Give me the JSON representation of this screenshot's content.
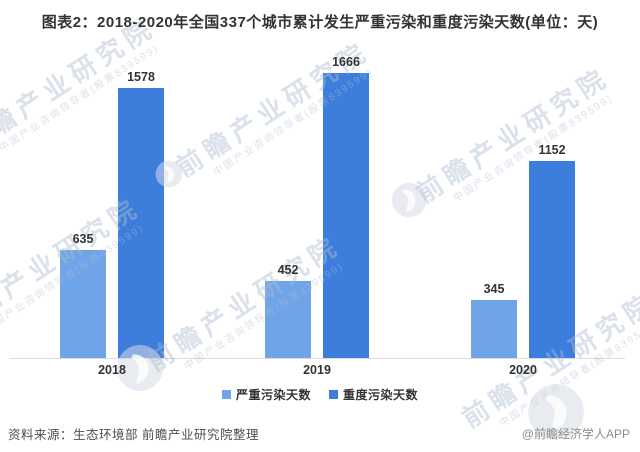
{
  "title": "图表2：2018-2020年全国337个城市累计发生严重污染和重度污染天数(单位：天)",
  "chart_data": {
    "type": "bar",
    "categories": [
      "2018",
      "2019",
      "2020"
    ],
    "series": [
      {
        "name": "严重污染天数",
        "color": "#6FA4E8",
        "values": [
          635,
          452,
          345
        ]
      },
      {
        "name": "重度污染天数",
        "color": "#3D7EDC",
        "values": [
          1578,
          1666,
          1152
        ]
      }
    ],
    "title": "图表2：2018-2020年全国337个城市累计发生严重污染和重度污染天数(单位：天)",
    "xlabel": "",
    "ylabel": "",
    "unit": "天",
    "ylim": [
      0,
      1750
    ],
    "grid": false,
    "legend_position": "bottom",
    "data_labels": true
  },
  "footer": {
    "source": "资料来源：生态环境部 前瞻产业研究院整理",
    "credit": "@前瞻经济学人APP"
  },
  "watermark": {
    "text": "前瞻产业研究院",
    "subtext": "中国产业咨询领导者(股票839599)"
  }
}
